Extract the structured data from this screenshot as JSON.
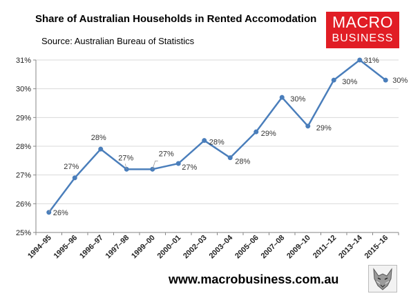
{
  "header": {
    "title": "Share of Australian Households in Rented Accomodation",
    "source": "Source: Australian Bureau of Statistics"
  },
  "logo": {
    "line1": "MACRO",
    "line2": "BUSINESS"
  },
  "footer": {
    "url": "www.macrobusiness.com.au",
    "mascot_icon": "wolf-icon"
  },
  "colors": {
    "series": "#4a7ebb",
    "brand": "#e11d25",
    "gridline": "#d9d9d9",
    "axis": "#868686"
  },
  "chart_data": {
    "type": "line",
    "title": "Share of Australian Households in Rented Accomodation",
    "subtitle": "Source: Australian Bureau of Statistics",
    "xlabel": "",
    "ylabel": "",
    "ylim": [
      25,
      31
    ],
    "y_ticks": [
      25,
      26,
      27,
      28,
      29,
      30,
      31
    ],
    "y_tick_labels": [
      "25%",
      "26%",
      "27%",
      "28%",
      "29%",
      "30%",
      "31%"
    ],
    "grid": true,
    "legend": "none",
    "categories": [
      "1994–95",
      "1995–96",
      "1996–97",
      "1997–98",
      "1999–00",
      "2000–01",
      "2002–03",
      "2003–04",
      "2005–06",
      "2007–08",
      "2009–10",
      "2011–12",
      "2013–14",
      "2015–16"
    ],
    "series": [
      {
        "values": [
          25.7,
          26.9,
          27.9,
          27.2,
          27.2,
          27.4,
          28.2,
          27.6,
          28.5,
          29.7,
          28.7,
          30.3,
          31.0,
          30.3
        ],
        "data_labels": [
          "26%",
          "27%",
          "28%",
          "27%",
          "27%",
          "27%",
          "28%",
          "28%",
          "29%",
          "30%",
          "29%",
          "30%",
          "31%",
          "30%"
        ]
      }
    ]
  }
}
